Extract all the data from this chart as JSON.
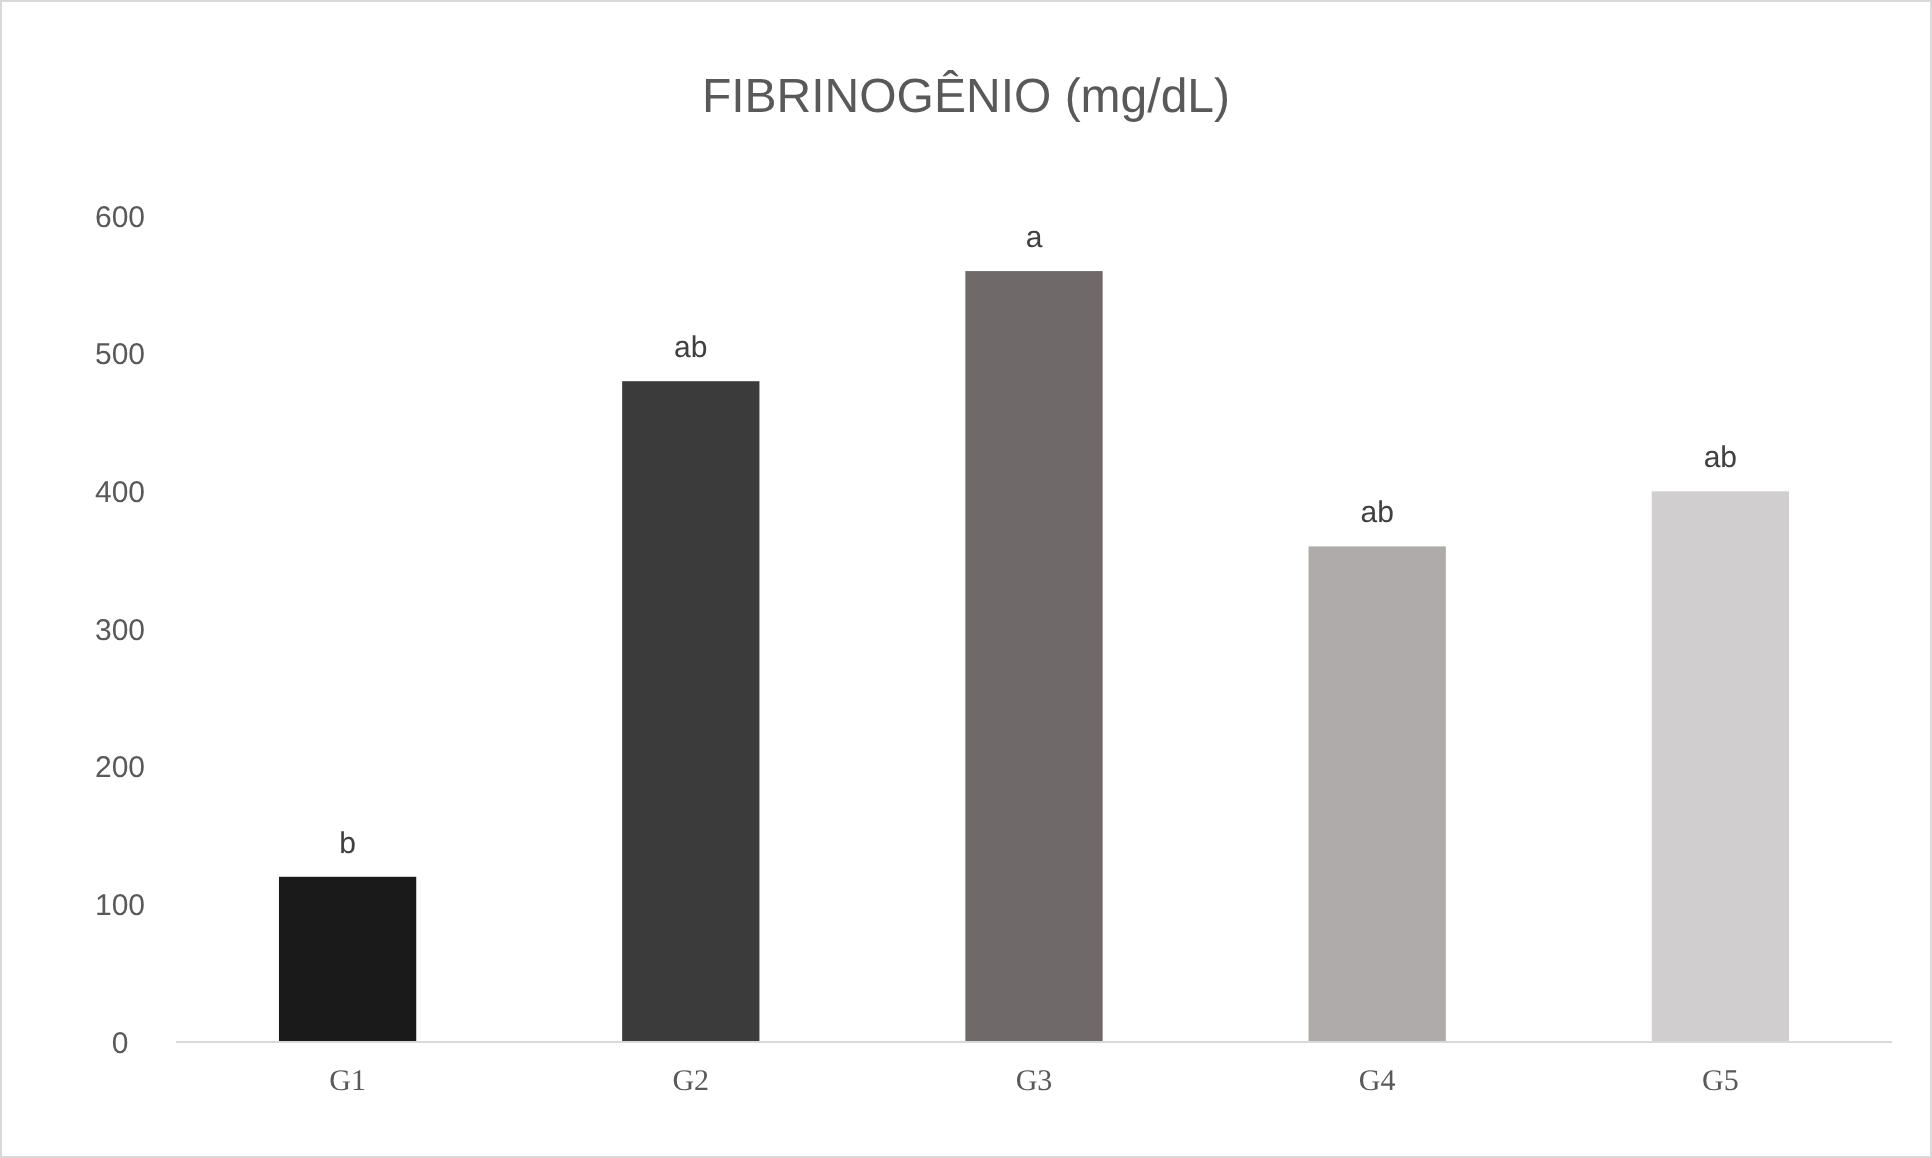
{
  "chart_data": {
    "type": "bar",
    "title": "FIBRINOGÊNIO (mg/dL)",
    "categories": [
      "G1",
      "G2",
      "G3",
      "G4",
      "G5"
    ],
    "values": [
      120,
      480,
      560,
      360,
      400
    ],
    "colors": [
      "#1a1a1a",
      "#3b3b3b",
      "#6f6a69",
      "#aeabaa",
      "#d0cece"
    ],
    "value_labels": [
      "b",
      "ab",
      "a",
      "ab",
      "ab"
    ],
    "ylim": [
      0,
      600
    ],
    "yticks": [
      0,
      100,
      200,
      300,
      400,
      500,
      600
    ],
    "grid": false
  }
}
